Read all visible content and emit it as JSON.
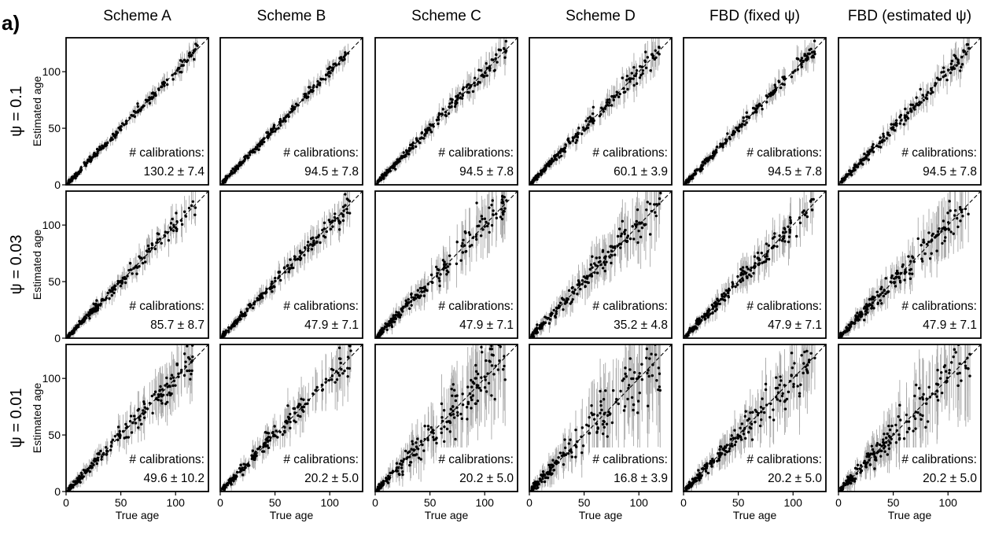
{
  "figure": {
    "panel_label": "a)",
    "column_titles": [
      "Scheme A",
      "Scheme B",
      "Scheme C",
      "Scheme D",
      "FBD (fixed ψ)",
      "FBD (estimated ψ)"
    ],
    "row_titles": [
      "ψ = 0.1",
      "ψ = 0.03",
      "ψ = 0.01"
    ],
    "x_label": "True age",
    "y_label": "Estimated age",
    "calibration_label": "# calibrations:",
    "x_ticks": [
      "0",
      "50",
      "100"
    ],
    "y_ticks": [
      "0",
      "50",
      "100"
    ],
    "colors": {
      "points": "#000000",
      "error_bars": "#a8a8a8",
      "reference_line": "#000000"
    }
  },
  "chart_data": {
    "type": "scatter",
    "xlim": [
      0,
      130
    ],
    "ylim": [
      0,
      130
    ],
    "grid": false,
    "reference_line": "y = x (dashed)",
    "uncertainty_by_row": [
      0.1,
      0.22,
      0.38
    ],
    "uncertainty_by_column": [
      0.55,
      0.55,
      1.0,
      1.15,
      0.8,
      1.05
    ],
    "panels": [
      {
        "row": 0,
        "column": 0,
        "calibrations": "130.2 ± 7.4"
      },
      {
        "row": 0,
        "column": 1,
        "calibrations": "94.5 ± 7.8"
      },
      {
        "row": 0,
        "column": 2,
        "calibrations": "94.5 ± 7.8"
      },
      {
        "row": 0,
        "column": 3,
        "calibrations": "60.1 ± 3.9"
      },
      {
        "row": 0,
        "column": 4,
        "calibrations": "94.5 ± 7.8"
      },
      {
        "row": 0,
        "column": 5,
        "calibrations": "94.5 ± 7.8"
      },
      {
        "row": 1,
        "column": 0,
        "calibrations": "85.7 ± 8.7"
      },
      {
        "row": 1,
        "column": 1,
        "calibrations": "47.9 ± 7.1"
      },
      {
        "row": 1,
        "column": 2,
        "calibrations": "47.9 ± 7.1"
      },
      {
        "row": 1,
        "column": 3,
        "calibrations": "35.2 ± 4.8"
      },
      {
        "row": 1,
        "column": 4,
        "calibrations": "47.9 ± 7.1"
      },
      {
        "row": 1,
        "column": 5,
        "calibrations": "47.9 ± 7.1"
      },
      {
        "row": 2,
        "column": 0,
        "calibrations": "49.6 ± 10.2"
      },
      {
        "row": 2,
        "column": 1,
        "calibrations": "20.2 ± 5.0"
      },
      {
        "row": 2,
        "column": 2,
        "calibrations": "20.2 ± 5.0"
      },
      {
        "row": 2,
        "column": 3,
        "calibrations": "16.8 ± 3.9"
      },
      {
        "row": 2,
        "column": 4,
        "calibrations": "20.2 ± 5.0"
      },
      {
        "row": 2,
        "column": 5,
        "calibrations": "20.2 ± 5.0"
      }
    ]
  }
}
